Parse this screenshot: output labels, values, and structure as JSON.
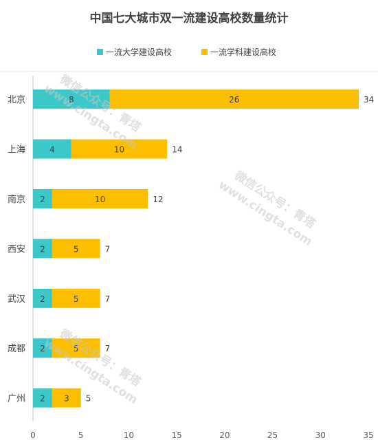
{
  "chart_data": {
    "type": "bar",
    "orientation": "horizontal",
    "stacked": true,
    "title": "中国七大城市双一流建设高校数量统计",
    "categories": [
      "北京",
      "上海",
      "南京",
      "西安",
      "武汉",
      "成都",
      "广州"
    ],
    "series": [
      {
        "name": "一流大学建设高校",
        "values": [
          8,
          4,
          2,
          2,
          2,
          2,
          2
        ],
        "color": "#3cc8c8"
      },
      {
        "name": "一流学科建设高校",
        "values": [
          26,
          10,
          10,
          5,
          5,
          5,
          3
        ],
        "color": "#fbbf00"
      }
    ],
    "totals": [
      34,
      14,
      12,
      7,
      7,
      7,
      5
    ],
    "x_ticks": [
      0,
      5,
      10,
      15,
      20,
      25,
      30,
      35
    ],
    "xlim": [
      0,
      35
    ],
    "xlabel": "",
    "ylabel": "",
    "legend_position": "top",
    "grid": false
  },
  "watermark": {
    "line1": "微信公众号：青塔",
    "line2": "www.cingta.com"
  }
}
